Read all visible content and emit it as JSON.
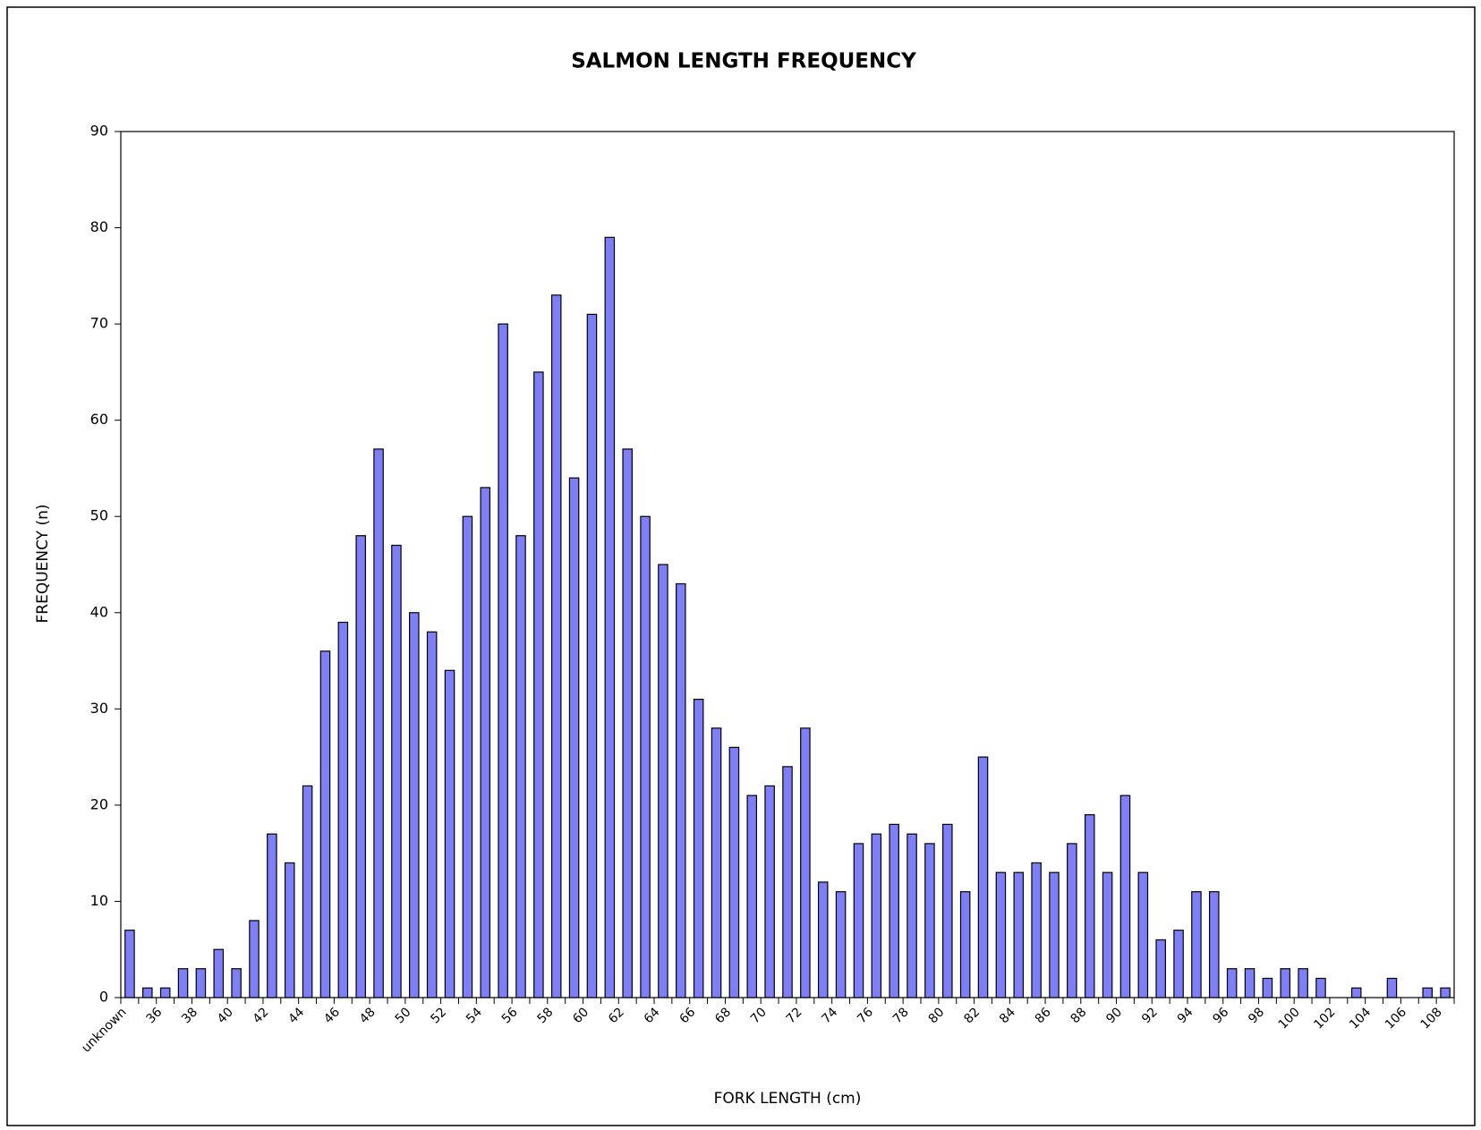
{
  "chart_data": {
    "type": "bar",
    "title": "SALMON LENGTH FREQUENCY",
    "x_label": "FORK LENGTH (cm)",
    "y_label": "FREQUENCY (n)",
    "categories": [
      "unknown",
      null,
      "36",
      null,
      "38",
      null,
      "40",
      null,
      "42",
      null,
      "44",
      null,
      "46",
      null,
      "48",
      null,
      "50",
      null,
      "52",
      null,
      "54",
      null,
      "56",
      null,
      "58",
      null,
      "60",
      null,
      "62",
      null,
      "64",
      null,
      "66",
      null,
      "68",
      null,
      "70",
      null,
      "72",
      null,
      "74",
      null,
      "76",
      null,
      "78",
      null,
      "80",
      null,
      "82",
      null,
      "84",
      null,
      "86",
      null,
      "88",
      null,
      "90",
      null,
      "92",
      null,
      "94",
      null,
      "96",
      null,
      "98",
      null,
      "100",
      null,
      "102",
      null,
      "104",
      null,
      "106",
      null,
      "108"
    ],
    "values": [
      7,
      1,
      1,
      3,
      3,
      5,
      3,
      8,
      17,
      14,
      22,
      36,
      39,
      48,
      57,
      47,
      40,
      38,
      34,
      50,
      53,
      70,
      48,
      65,
      73,
      54,
      71,
      79,
      57,
      50,
      45,
      43,
      31,
      28,
      26,
      21,
      22,
      24,
      28,
      12,
      11,
      16,
      17,
      18,
      17,
      16,
      18,
      11,
      25,
      13,
      13,
      14,
      13,
      16,
      19,
      13,
      21,
      13,
      6,
      7,
      11,
      11,
      3,
      3,
      2,
      3,
      3,
      2,
      0,
      1,
      0,
      2,
      0,
      1,
      1
    ],
    "color": "#7f7ff5",
    "ylim": [
      0,
      90
    ],
    "yticks": [
      0,
      10,
      20,
      30,
      40,
      50,
      60,
      70,
      80,
      90
    ],
    "grid": false
  }
}
